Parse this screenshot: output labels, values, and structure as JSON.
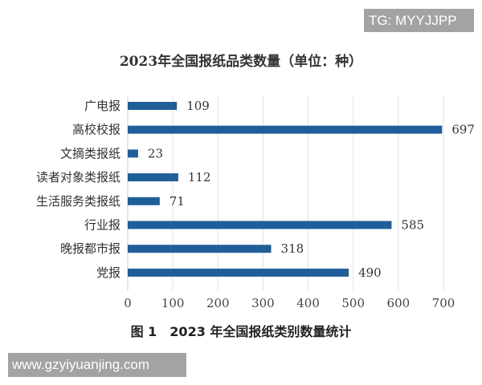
{
  "watermarks": {
    "top": "TG: MYYJJPP",
    "bottom": "www.gzyiyuanjing.com"
  },
  "caption": "图 1　2023 年全国报纸类别数量统计",
  "chart_data": {
    "type": "bar",
    "orientation": "horizontal",
    "title": "2023年全国报纸品类数量（单位：种）",
    "categories": [
      "广电报",
      "高校校报",
      "文摘类报纸",
      "读者对象类报纸",
      "生活服务类报纸",
      "行业报",
      "晚报都市报",
      "党报"
    ],
    "values": [
      109,
      697,
      23,
      112,
      71,
      585,
      318,
      490
    ],
    "xlim": [
      0,
      700
    ],
    "xticks": [
      "0",
      "100",
      "200",
      "300",
      "400",
      "500",
      "600",
      "700"
    ],
    "grid": true,
    "data_labels": true,
    "bar_color": "#1f5f99"
  }
}
